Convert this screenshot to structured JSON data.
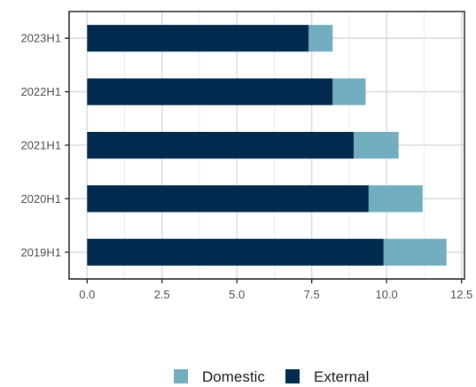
{
  "chart_data": {
    "type": "bar",
    "orientation": "horizontal",
    "stacked": true,
    "categories": [
      "2019H1",
      "2020H1",
      "2021H1",
      "2022H1",
      "2023H1"
    ],
    "series": [
      {
        "name": "External",
        "color": "#002b4f",
        "values": [
          9.9,
          9.4,
          8.9,
          8.2,
          7.4
        ]
      },
      {
        "name": "Domestic",
        "color": "#72aebf",
        "values": [
          2.1,
          1.8,
          1.5,
          1.1,
          0.8
        ]
      }
    ],
    "xlim": [
      -0.6,
      12.6
    ],
    "x_ticks": [
      "0.0",
      "2.5",
      "5.0",
      "7.5",
      "10.0",
      "12.5"
    ],
    "x_tick_values": [
      0,
      2.5,
      5,
      7.5,
      10,
      12.5
    ],
    "grid": true,
    "legend_position": "bottom",
    "legend_order": [
      "Domestic",
      "External"
    ],
    "xlabel": "",
    "ylabel": "",
    "title": ""
  }
}
